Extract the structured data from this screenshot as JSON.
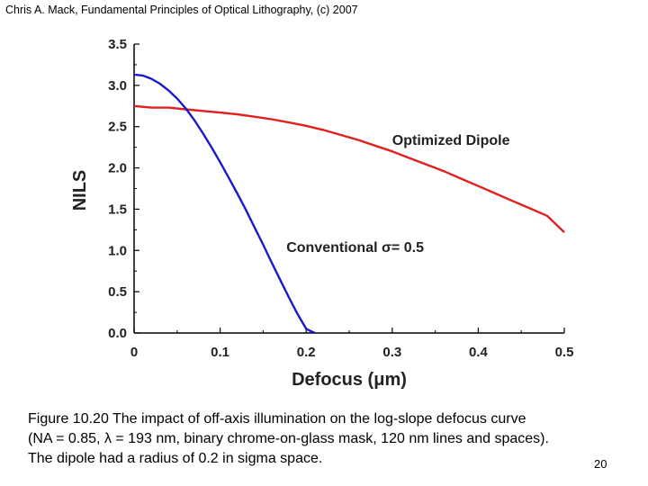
{
  "header": {
    "text": "Chris A. Mack, Fundamental Principles of Optical Lithography, (c) 2007"
  },
  "caption": {
    "lines": [
      "Figure 10.20  The impact of off-axis illumination on the log-slope defocus curve",
      "(NA = 0.85, λ = 193 nm, binary chrome-on-glass mask, 120 nm lines and spaces).",
      "The dipole had a radius of 0.2 in sigma space."
    ]
  },
  "page_number": "20",
  "chart_data": {
    "type": "line",
    "xlabel": "Defocus (μm)",
    "ylabel": "NILS",
    "xlim": [
      0,
      0.5
    ],
    "ylim": [
      0,
      3.5
    ],
    "x_ticks": [
      "0",
      "0.1",
      "0.2",
      "0.3",
      "0.4",
      "0.5"
    ],
    "y_ticks": [
      "0.0",
      "0.5",
      "1.0",
      "1.5",
      "2.0",
      "2.5",
      "3.0",
      "3.5"
    ],
    "grid": false,
    "series": [
      {
        "name": "Optimized Dipole",
        "color": "#e02020",
        "x": [
          0,
          0.01,
          0.02,
          0.04,
          0.06,
          0.08,
          0.1,
          0.12,
          0.14,
          0.16,
          0.18,
          0.2,
          0.22,
          0.24,
          0.26,
          0.28,
          0.3,
          0.32,
          0.34,
          0.36,
          0.38,
          0.4,
          0.42,
          0.44,
          0.46,
          0.48,
          0.5
        ],
        "y": [
          2.75,
          2.74,
          2.73,
          2.73,
          2.71,
          2.69,
          2.67,
          2.65,
          2.62,
          2.59,
          2.55,
          2.51,
          2.46,
          2.4,
          2.34,
          2.27,
          2.2,
          2.12,
          2.04,
          1.96,
          1.87,
          1.78,
          1.69,
          1.6,
          1.51,
          1.42,
          1.22
        ]
      },
      {
        "name": "Conventional σ= 0.5",
        "color": "#1a1acc",
        "x": [
          0,
          0.01,
          0.02,
          0.03,
          0.04,
          0.05,
          0.06,
          0.07,
          0.08,
          0.09,
          0.1,
          0.11,
          0.12,
          0.13,
          0.14,
          0.15,
          0.16,
          0.17,
          0.18,
          0.19,
          0.2,
          0.21
        ],
        "y": [
          3.13,
          3.12,
          3.08,
          3.02,
          2.94,
          2.84,
          2.72,
          2.58,
          2.42,
          2.25,
          2.07,
          1.88,
          1.69,
          1.49,
          1.28,
          1.07,
          0.85,
          0.64,
          0.43,
          0.23,
          0.05,
          0.0
        ]
      }
    ],
    "annotations": [
      {
        "text": "Optimized Dipole",
        "x": 0.3,
        "y": 2.28
      },
      {
        "text": "Conventional σ= 0.5",
        "x": 0.177,
        "y": 0.98
      }
    ]
  }
}
